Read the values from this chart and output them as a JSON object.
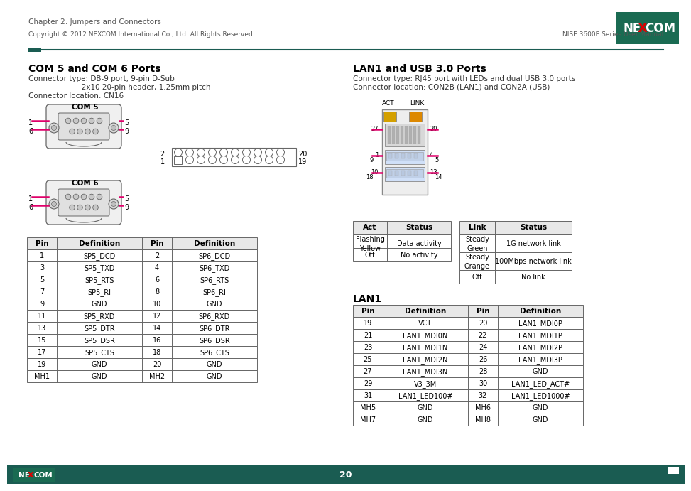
{
  "title_text": "Chapter 2: Jumpers and Connectors",
  "page_num": "20",
  "footer_left": "Copyright © 2012 NEXCOM International Co., Ltd. All Rights Reserved.",
  "footer_right": "NISE 3600E Series User Manual",
  "com_title": "COM 5 and COM 6 Ports",
  "com_line1": "Connector type: DB-9 port, 9-pin D-Sub",
  "com_line2": "                       2x10 20-pin header, 1.25mm pitch",
  "com_line3": "Connector location: CN16",
  "lan_title": "LAN1 and USB 3.0 Ports",
  "lan_line1": "Connector type: RJ45 port with LEDs and dual USB 3.0 ports",
  "lan_line2": "Connector location: CON2B (LAN1) and CON2A (USB)",
  "lan1_title": "LAN1",
  "header_color": "#1a5c52",
  "red_color": "#e0006a",
  "nexcom_green": "#1a6b52",
  "com_table": {
    "headers": [
      "Pin",
      "Definition",
      "Pin",
      "Definition"
    ],
    "rows": [
      [
        "1",
        "SP5_DCD",
        "2",
        "SP6_DCD"
      ],
      [
        "3",
        "SP5_TXD",
        "4",
        "SP6_TXD"
      ],
      [
        "5",
        "SP5_RTS",
        "6",
        "SP6_RTS"
      ],
      [
        "7",
        "SP5_RI",
        "8",
        "SP6_RI"
      ],
      [
        "9",
        "GND",
        "10",
        "GND"
      ],
      [
        "11",
        "SP5_RXD",
        "12",
        "SP6_RXD"
      ],
      [
        "13",
        "SP5_DTR",
        "14",
        "SP6_DTR"
      ],
      [
        "15",
        "SP5_DSR",
        "16",
        "SP6_DSR"
      ],
      [
        "17",
        "SP5_CTS",
        "18",
        "SP6_CTS"
      ],
      [
        "19",
        "GND",
        "20",
        "GND"
      ],
      [
        "MH1",
        "GND",
        "MH2",
        "GND"
      ]
    ]
  },
  "lan1_table": {
    "headers": [
      "Pin",
      "Definition",
      "Pin",
      "Definition"
    ],
    "rows": [
      [
        "19",
        "VCT",
        "20",
        "LAN1_MDI0P"
      ],
      [
        "21",
        "LAN1_MDI0N",
        "22",
        "LAN1_MDI1P"
      ],
      [
        "23",
        "LAN1_MDI1N",
        "24",
        "LAN1_MDI2P"
      ],
      [
        "25",
        "LAN1_MDI2N",
        "26",
        "LAN1_MDI3P"
      ],
      [
        "27",
        "LAN1_MDI3N",
        "28",
        "GND"
      ],
      [
        "29",
        "V3_3M",
        "30",
        "LAN1_LED_ACT#"
      ],
      [
        "31",
        "LAN1_LED100#",
        "32",
        "LAN1_LED1000#"
      ],
      [
        "MH5",
        "GND",
        "MH6",
        "GND"
      ],
      [
        "MH7",
        "GND",
        "MH8",
        "GND"
      ]
    ]
  }
}
